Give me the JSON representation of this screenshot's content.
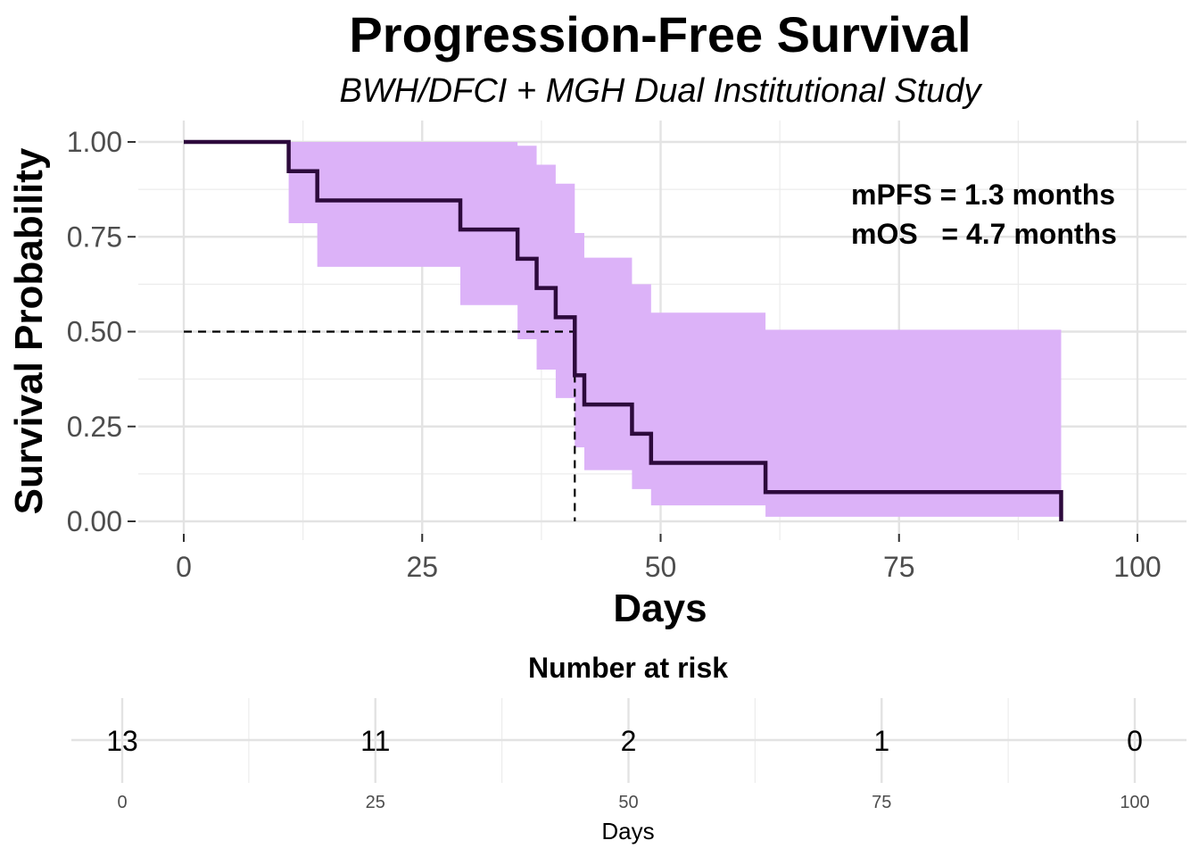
{
  "chart_data": [
    {
      "type": "line",
      "subtype": "kaplan-meier",
      "title": "Progression-Free Survival",
      "subtitle": "BWH/DFCI + MGH Dual Institutional Study",
      "xlabel": "Days",
      "ylabel": "Survival Probability",
      "xlim": [
        0,
        100
      ],
      "ylim": [
        0,
        1
      ],
      "x_ticks": [
        0,
        25,
        50,
        75,
        100
      ],
      "y_ticks": [
        0,
        0.25,
        0.5,
        0.75,
        1
      ],
      "y_tick_labels": [
        "0.00",
        "0.25",
        "0.50",
        "0.75",
        "1.00"
      ],
      "grid": true,
      "series": [
        {
          "line_color": "#2d0a3c",
          "band_color": "#dcb2f8",
          "steps": [
            {
              "x": 0,
              "y": 1.0,
              "lower": 1.0,
              "upper": 1.0
            },
            {
              "x": 11,
              "y": 0.923,
              "lower": 0.786,
              "upper": 1.0
            },
            {
              "x": 14,
              "y": 0.846,
              "lower": 0.671,
              "upper": 1.0
            },
            {
              "x": 29,
              "y": 0.769,
              "lower": 0.57,
              "upper": 1.0
            },
            {
              "x": 35,
              "y": 0.692,
              "lower": 0.48,
              "upper": 0.99
            },
            {
              "x": 37,
              "y": 0.615,
              "lower": 0.4,
              "upper": 0.94
            },
            {
              "x": 39,
              "y": 0.538,
              "lower": 0.325,
              "upper": 0.89
            },
            {
              "x": 41,
              "y": 0.385,
              "lower": 0.195,
              "upper": 0.76
            },
            {
              "x": 42,
              "y": 0.308,
              "lower": 0.135,
              "upper": 0.695
            },
            {
              "x": 47,
              "y": 0.231,
              "lower": 0.085,
              "upper": 0.625
            },
            {
              "x": 49,
              "y": 0.154,
              "lower": 0.042,
              "upper": 0.55
            },
            {
              "x": 61,
              "y": 0.077,
              "lower": 0.012,
              "upper": 0.505
            },
            {
              "x": 92,
              "y": 0.0,
              "lower": 0.0,
              "upper": 0.0
            }
          ]
        }
      ],
      "median": {
        "x": 41,
        "y": 0.5
      },
      "annotations": [
        "mPFS = 1.3 months",
        "mOS   = 4.7 months"
      ]
    },
    {
      "type": "table",
      "title": "Number at risk",
      "xlabel": "Days",
      "x": [
        0,
        25,
        50,
        75,
        100
      ],
      "values": [
        13,
        11,
        2,
        1,
        0
      ]
    }
  ]
}
